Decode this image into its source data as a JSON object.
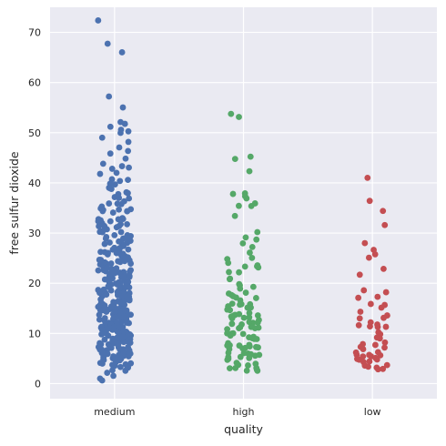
{
  "chart_data": {
    "type": "scatter",
    "style": "strip plot with jitter",
    "title": "",
    "xlabel": "quality",
    "ylabel": "free sulfur dioxide",
    "categories": [
      "medium",
      "high",
      "low"
    ],
    "yticks": [
      0,
      10,
      20,
      30,
      40,
      50,
      60,
      70
    ],
    "ylim": [
      -3,
      75
    ],
    "grid": true,
    "background": "#EAEAF2",
    "gridColor": "#FFFFFF",
    "series": [
      {
        "category": "medium",
        "color": "#4C72B0",
        "values": [
          72,
          68,
          66,
          57,
          55,
          52,
          52,
          51,
          51,
          50,
          50,
          49,
          48,
          47,
          46,
          46,
          45,
          44,
          43,
          43,
          43,
          42,
          42,
          41,
          41,
          40,
          40,
          40,
          39,
          39,
          39,
          38,
          38,
          38,
          37,
          37,
          37,
          36,
          36,
          36,
          36,
          35,
          35,
          35,
          35,
          35,
          34,
          34,
          34,
          34,
          33,
          33,
          33,
          33,
          33,
          32,
          32,
          32,
          32,
          32,
          31,
          31,
          31,
          31,
          31,
          31,
          30,
          30,
          30,
          30,
          30,
          30,
          29,
          29,
          29,
          29,
          29,
          29,
          28,
          28,
          28,
          28,
          28,
          28,
          28,
          27,
          27,
          27,
          27,
          27,
          27,
          27,
          26,
          26,
          26,
          26,
          26,
          26,
          26,
          26,
          25,
          25,
          25,
          25,
          25,
          25,
          25,
          25,
          24,
          24,
          24,
          24,
          24,
          24,
          24,
          24,
          24,
          23,
          23,
          23,
          23,
          23,
          23,
          23,
          23,
          23,
          22,
          22,
          22,
          22,
          22,
          22,
          22,
          22,
          22,
          22,
          21,
          21,
          21,
          21,
          21,
          21,
          21,
          21,
          21,
          21,
          20,
          20,
          20,
          20,
          20,
          20,
          20,
          20,
          20,
          20,
          20,
          19,
          19,
          19,
          19,
          19,
          19,
          19,
          19,
          19,
          19,
          19,
          18,
          18,
          18,
          18,
          18,
          18,
          18,
          18,
          18,
          18,
          18,
          18,
          17,
          17,
          17,
          17,
          17,
          17,
          17,
          17,
          17,
          17,
          17,
          17,
          16,
          16,
          16,
          16,
          16,
          16,
          16,
          16,
          16,
          16,
          16,
          16,
          16,
          15,
          15,
          15,
          15,
          15,
          15,
          15,
          15,
          15,
          15,
          15,
          15,
          15,
          14,
          14,
          14,
          14,
          14,
          14,
          14,
          14,
          14,
          14,
          14,
          14,
          14,
          13,
          13,
          13,
          13,
          13,
          13,
          13,
          13,
          13,
          13,
          13,
          13,
          13,
          12,
          12,
          12,
          12,
          12,
          12,
          12,
          12,
          12,
          12,
          12,
          12,
          12,
          12,
          11,
          11,
          11,
          11,
          11,
          11,
          11,
          11,
          11,
          11,
          11,
          11,
          11,
          10,
          10,
          10,
          10,
          10,
          10,
          10,
          10,
          10,
          10,
          10,
          10,
          10,
          9,
          9,
          9,
          9,
          9,
          9,
          9,
          9,
          9,
          9,
          9,
          9,
          8,
          8,
          8,
          8,
          8,
          8,
          8,
          8,
          8,
          8,
          8,
          8,
          7,
          7,
          7,
          7,
          7,
          7,
          7,
          7,
          7,
          7,
          7,
          6,
          6,
          6,
          6,
          6,
          6,
          6,
          6,
          6,
          6,
          5,
          5,
          5,
          5,
          5,
          5,
          5,
          5,
          5,
          4,
          4,
          4,
          4,
          4,
          4,
          4,
          3,
          3,
          3,
          3,
          3,
          2,
          2,
          1,
          1
        ]
      },
      {
        "category": "high",
        "color": "#55A868",
        "values": [
          54,
          53,
          45,
          45,
          42,
          38,
          38,
          37,
          37,
          36,
          35,
          35,
          33,
          30,
          29,
          29,
          28,
          27,
          26,
          25,
          25,
          24,
          24,
          23,
          23,
          23,
          22,
          22,
          21,
          21,
          20,
          20,
          19,
          19,
          18,
          18,
          18,
          17,
          17,
          17,
          17,
          16,
          16,
          16,
          16,
          15,
          15,
          15,
          15,
          15,
          14,
          14,
          14,
          14,
          14,
          13,
          13,
          13,
          13,
          13,
          12,
          12,
          12,
          12,
          12,
          12,
          11,
          11,
          11,
          11,
          11,
          11,
          10,
          10,
          10,
          10,
          10,
          10,
          9,
          9,
          9,
          9,
          9,
          8,
          8,
          8,
          8,
          8,
          7,
          7,
          7,
          7,
          7,
          7,
          6,
          6,
          6,
          6,
          6,
          6,
          5,
          5,
          5,
          5,
          5,
          4,
          4,
          4,
          4,
          3,
          3,
          3,
          3,
          3,
          3
        ]
      },
      {
        "category": "low",
        "color": "#C44E52",
        "values": [
          41,
          36,
          34,
          32,
          28,
          27,
          26,
          25,
          23,
          22,
          19,
          18,
          17,
          17,
          16,
          16,
          15,
          14,
          14,
          13,
          13,
          12,
          12,
          12,
          11,
          11,
          11,
          10,
          10,
          9,
          9,
          8,
          8,
          8,
          7,
          7,
          7,
          6,
          6,
          6,
          6,
          6,
          5,
          5,
          5,
          5,
          5,
          5,
          4,
          4,
          4,
          4,
          3,
          3,
          3,
          3
        ]
      }
    ]
  }
}
